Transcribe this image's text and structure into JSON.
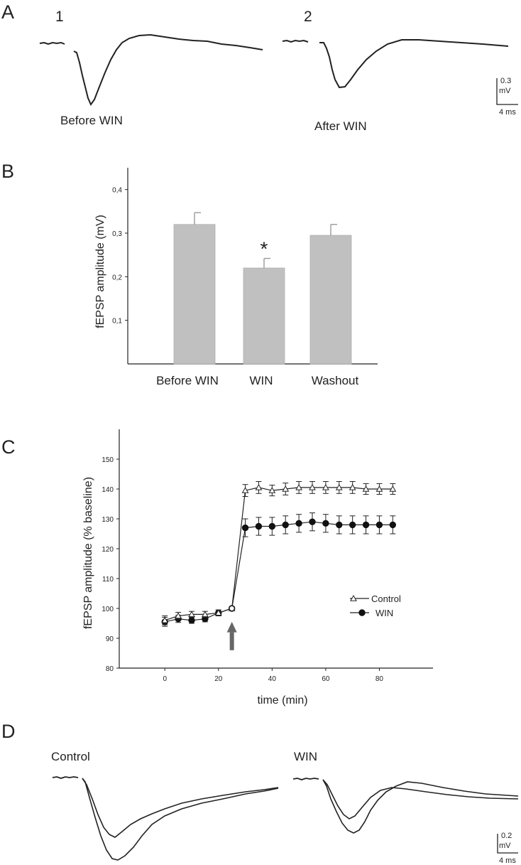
{
  "panels": {
    "a": {
      "letter": "A",
      "trace1": {
        "num": "1",
        "caption": "Before WIN"
      },
      "trace2": {
        "num": "2",
        "caption": "After WIN"
      },
      "scale": {
        "amp": "0.3",
        "unit": "mV",
        "time": "4 ms"
      }
    },
    "b": {
      "letter": "B"
    },
    "c": {
      "letter": "C"
    },
    "d": {
      "letter": "D",
      "left_label": "Control",
      "right_label": "WIN",
      "scale": {
        "amp": "0.2",
        "unit": "mV",
        "time": "4 ms"
      }
    }
  },
  "chart_data": [
    {
      "id": "B",
      "type": "bar",
      "categories": [
        "Before WIN",
        "WIN",
        "Washout"
      ],
      "values": [
        0.32,
        0.22,
        0.295
      ],
      "errors": [
        0.027,
        0.022,
        0.025
      ],
      "significance": [
        "",
        "*",
        ""
      ],
      "ylabel": "fEPSP amplitude (mV)",
      "yticks": [
        "0,1",
        "0,2",
        "0,3",
        "0,4"
      ],
      "ylim": [
        0,
        0.45
      ],
      "bar_color": "#c0c0c0"
    },
    {
      "id": "C",
      "type": "line",
      "xlabel": "time (min)",
      "ylabel": "fEPSP amplitude (% baseline)",
      "xlim": [
        -17,
        100
      ],
      "ylim": [
        80,
        160
      ],
      "xticks": [
        0,
        20,
        40,
        60,
        80
      ],
      "yticks": [
        80,
        90,
        100,
        110,
        120,
        130,
        140,
        150
      ],
      "arrow_at": 25,
      "legend_position": "right",
      "series": [
        {
          "name": "Control",
          "marker": "open-triangle",
          "x": [
            0,
            5,
            10,
            15,
            20,
            25,
            30,
            35,
            40,
            45,
            50,
            55,
            60,
            65,
            70,
            75,
            80,
            85
          ],
          "y": [
            96,
            97.5,
            98,
            98,
            98.5,
            100,
            139.5,
            140.5,
            139.5,
            140,
            140.5,
            140.5,
            140.5,
            140.5,
            140.5,
            140,
            140,
            140
          ],
          "err": [
            1.5,
            1.2,
            1,
            1,
            1,
            0.5,
            2,
            2,
            1.8,
            2,
            2,
            2,
            2,
            2,
            2,
            1.8,
            1.8,
            1.8
          ]
        },
        {
          "name": "WIN",
          "marker": "filled-circle",
          "x": [
            0,
            5,
            10,
            15,
            20,
            25,
            30,
            35,
            40,
            45,
            50,
            55,
            60,
            65,
            70,
            75,
            80,
            85
          ],
          "y": [
            95.5,
            96.5,
            96,
            96.5,
            98.5,
            100,
            127,
            127.5,
            127.5,
            128,
            128.5,
            129,
            128.5,
            128,
            128,
            128,
            128,
            128
          ],
          "err": [
            1.5,
            1.2,
            1,
            1,
            1,
            0.5,
            3,
            3,
            3,
            3,
            3,
            3,
            3,
            3,
            3,
            3,
            3,
            3
          ]
        }
      ]
    }
  ]
}
